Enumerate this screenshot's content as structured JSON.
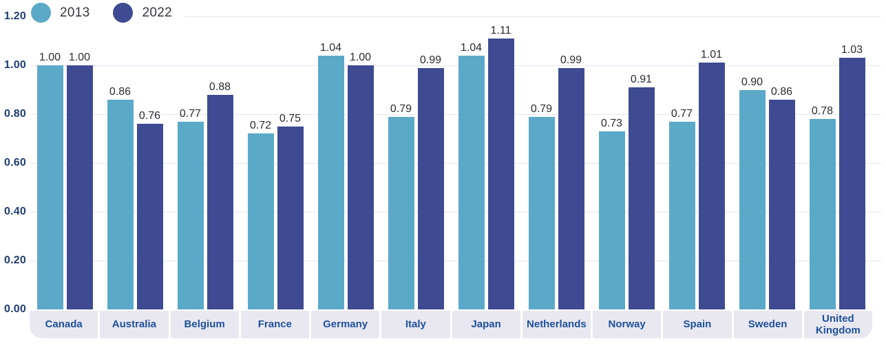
{
  "chart_data": {
    "type": "bar",
    "title": "",
    "categories": [
      "Canada",
      "Australia",
      "Belgium",
      "France",
      "Germany",
      "Italy",
      "Japan",
      "Netherlands",
      "Norway",
      "Spain",
      "Sweden",
      "United Kingdom"
    ],
    "series": [
      {
        "name": "2013",
        "color": "#5ba9c8",
        "values": [
          1.0,
          0.86,
          0.77,
          0.72,
          1.04,
          0.79,
          1.04,
          0.79,
          0.73,
          0.77,
          0.9,
          0.78
        ]
      },
      {
        "name": "2022",
        "color": "#3e4b92",
        "values": [
          1.0,
          0.76,
          0.88,
          0.75,
          1.0,
          0.99,
          1.11,
          0.99,
          0.91,
          1.01,
          0.86,
          1.03
        ]
      }
    ],
    "ylim": [
      0,
      1.2
    ],
    "yticks": [
      "0.00",
      "0.20",
      "0.40",
      "0.60",
      "0.80",
      "1.00",
      "1.20"
    ],
    "grid": true,
    "legend_position": "top-left",
    "value_labels": "2dp",
    "xlabel": "",
    "ylabel": ""
  },
  "colors": {
    "bar_2013": "#5ba9c8",
    "bar_2022": "#3e4b92",
    "gridline": "#e3e4f0",
    "axis_band": "#e9e8f1",
    "ytick_text": "#1f3d72",
    "category_text": "#1d509c",
    "value_text": "#2a2a31",
    "background": "#ffffff"
  }
}
